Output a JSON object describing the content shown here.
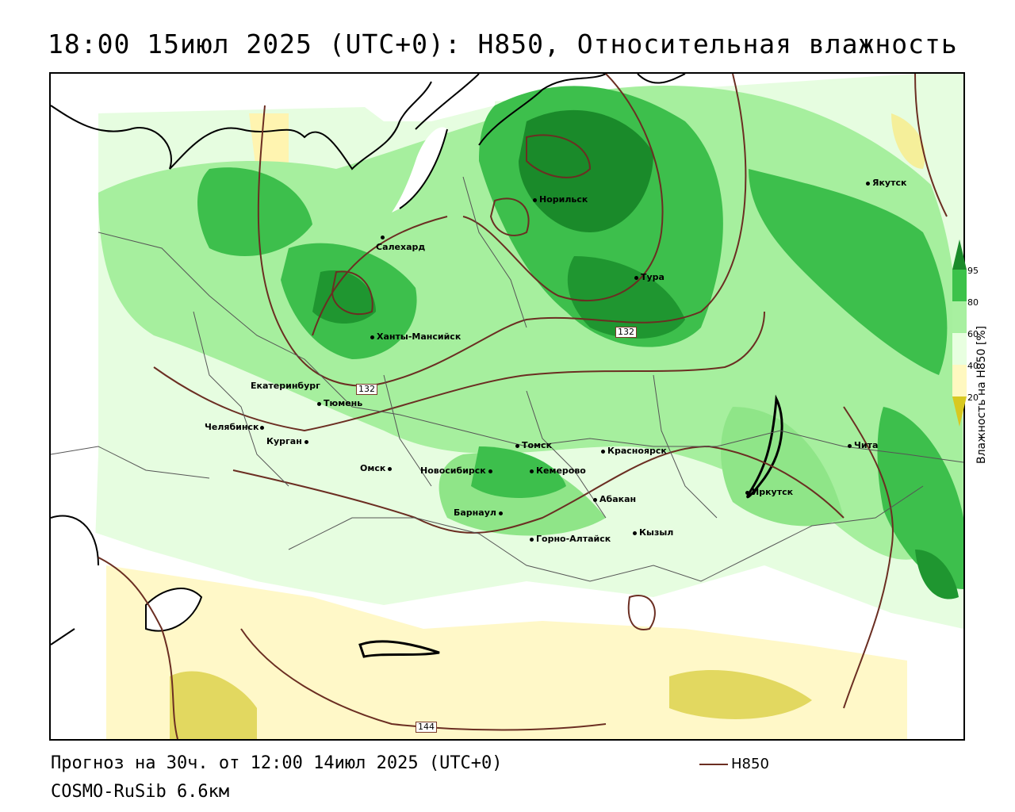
{
  "title": "18:00 15июл 2025 (UTC+0): H850, Относительная влажность",
  "footer": {
    "forecast": "Прогноз на 30ч. от 12:00 14июл 2025 (UTC+0)",
    "model": "COSMO-RuSib 6.6км",
    "line_legend": "H850"
  },
  "legend": {
    "title": "Влажность на H850 [%]",
    "ticks": [
      "95",
      "80",
      "60",
      "40",
      "20"
    ],
    "colors": {
      "c95": "#1a8a2a",
      "c80": "#3cc24a",
      "c60": "#a8f0a0",
      "c40": "#e8ffe0",
      "c20": "#fff8c0",
      "c10": "#e8e090",
      "c0": "#d8c820"
    }
  },
  "contour_labels": [
    "132",
    "132",
    "144"
  ],
  "cities": [
    {
      "name": "Якутск"
    },
    {
      "name": "Норильск"
    },
    {
      "name": "Салехард"
    },
    {
      "name": "Тура"
    },
    {
      "name": "Ханты-Мансийск"
    },
    {
      "name": "Екатеринбург"
    },
    {
      "name": "Тюмень"
    },
    {
      "name": "Челябинск"
    },
    {
      "name": "Курган"
    },
    {
      "name": "Омск"
    },
    {
      "name": "Томск"
    },
    {
      "name": "Красноярск"
    },
    {
      "name": "Новосибирск"
    },
    {
      "name": "Кемерово"
    },
    {
      "name": "Барнаул"
    },
    {
      "name": "Абакан"
    },
    {
      "name": "Горно-Алтайск"
    },
    {
      "name": "Кызыл"
    },
    {
      "name": "Иркутск"
    },
    {
      "name": "Чита"
    }
  ]
}
